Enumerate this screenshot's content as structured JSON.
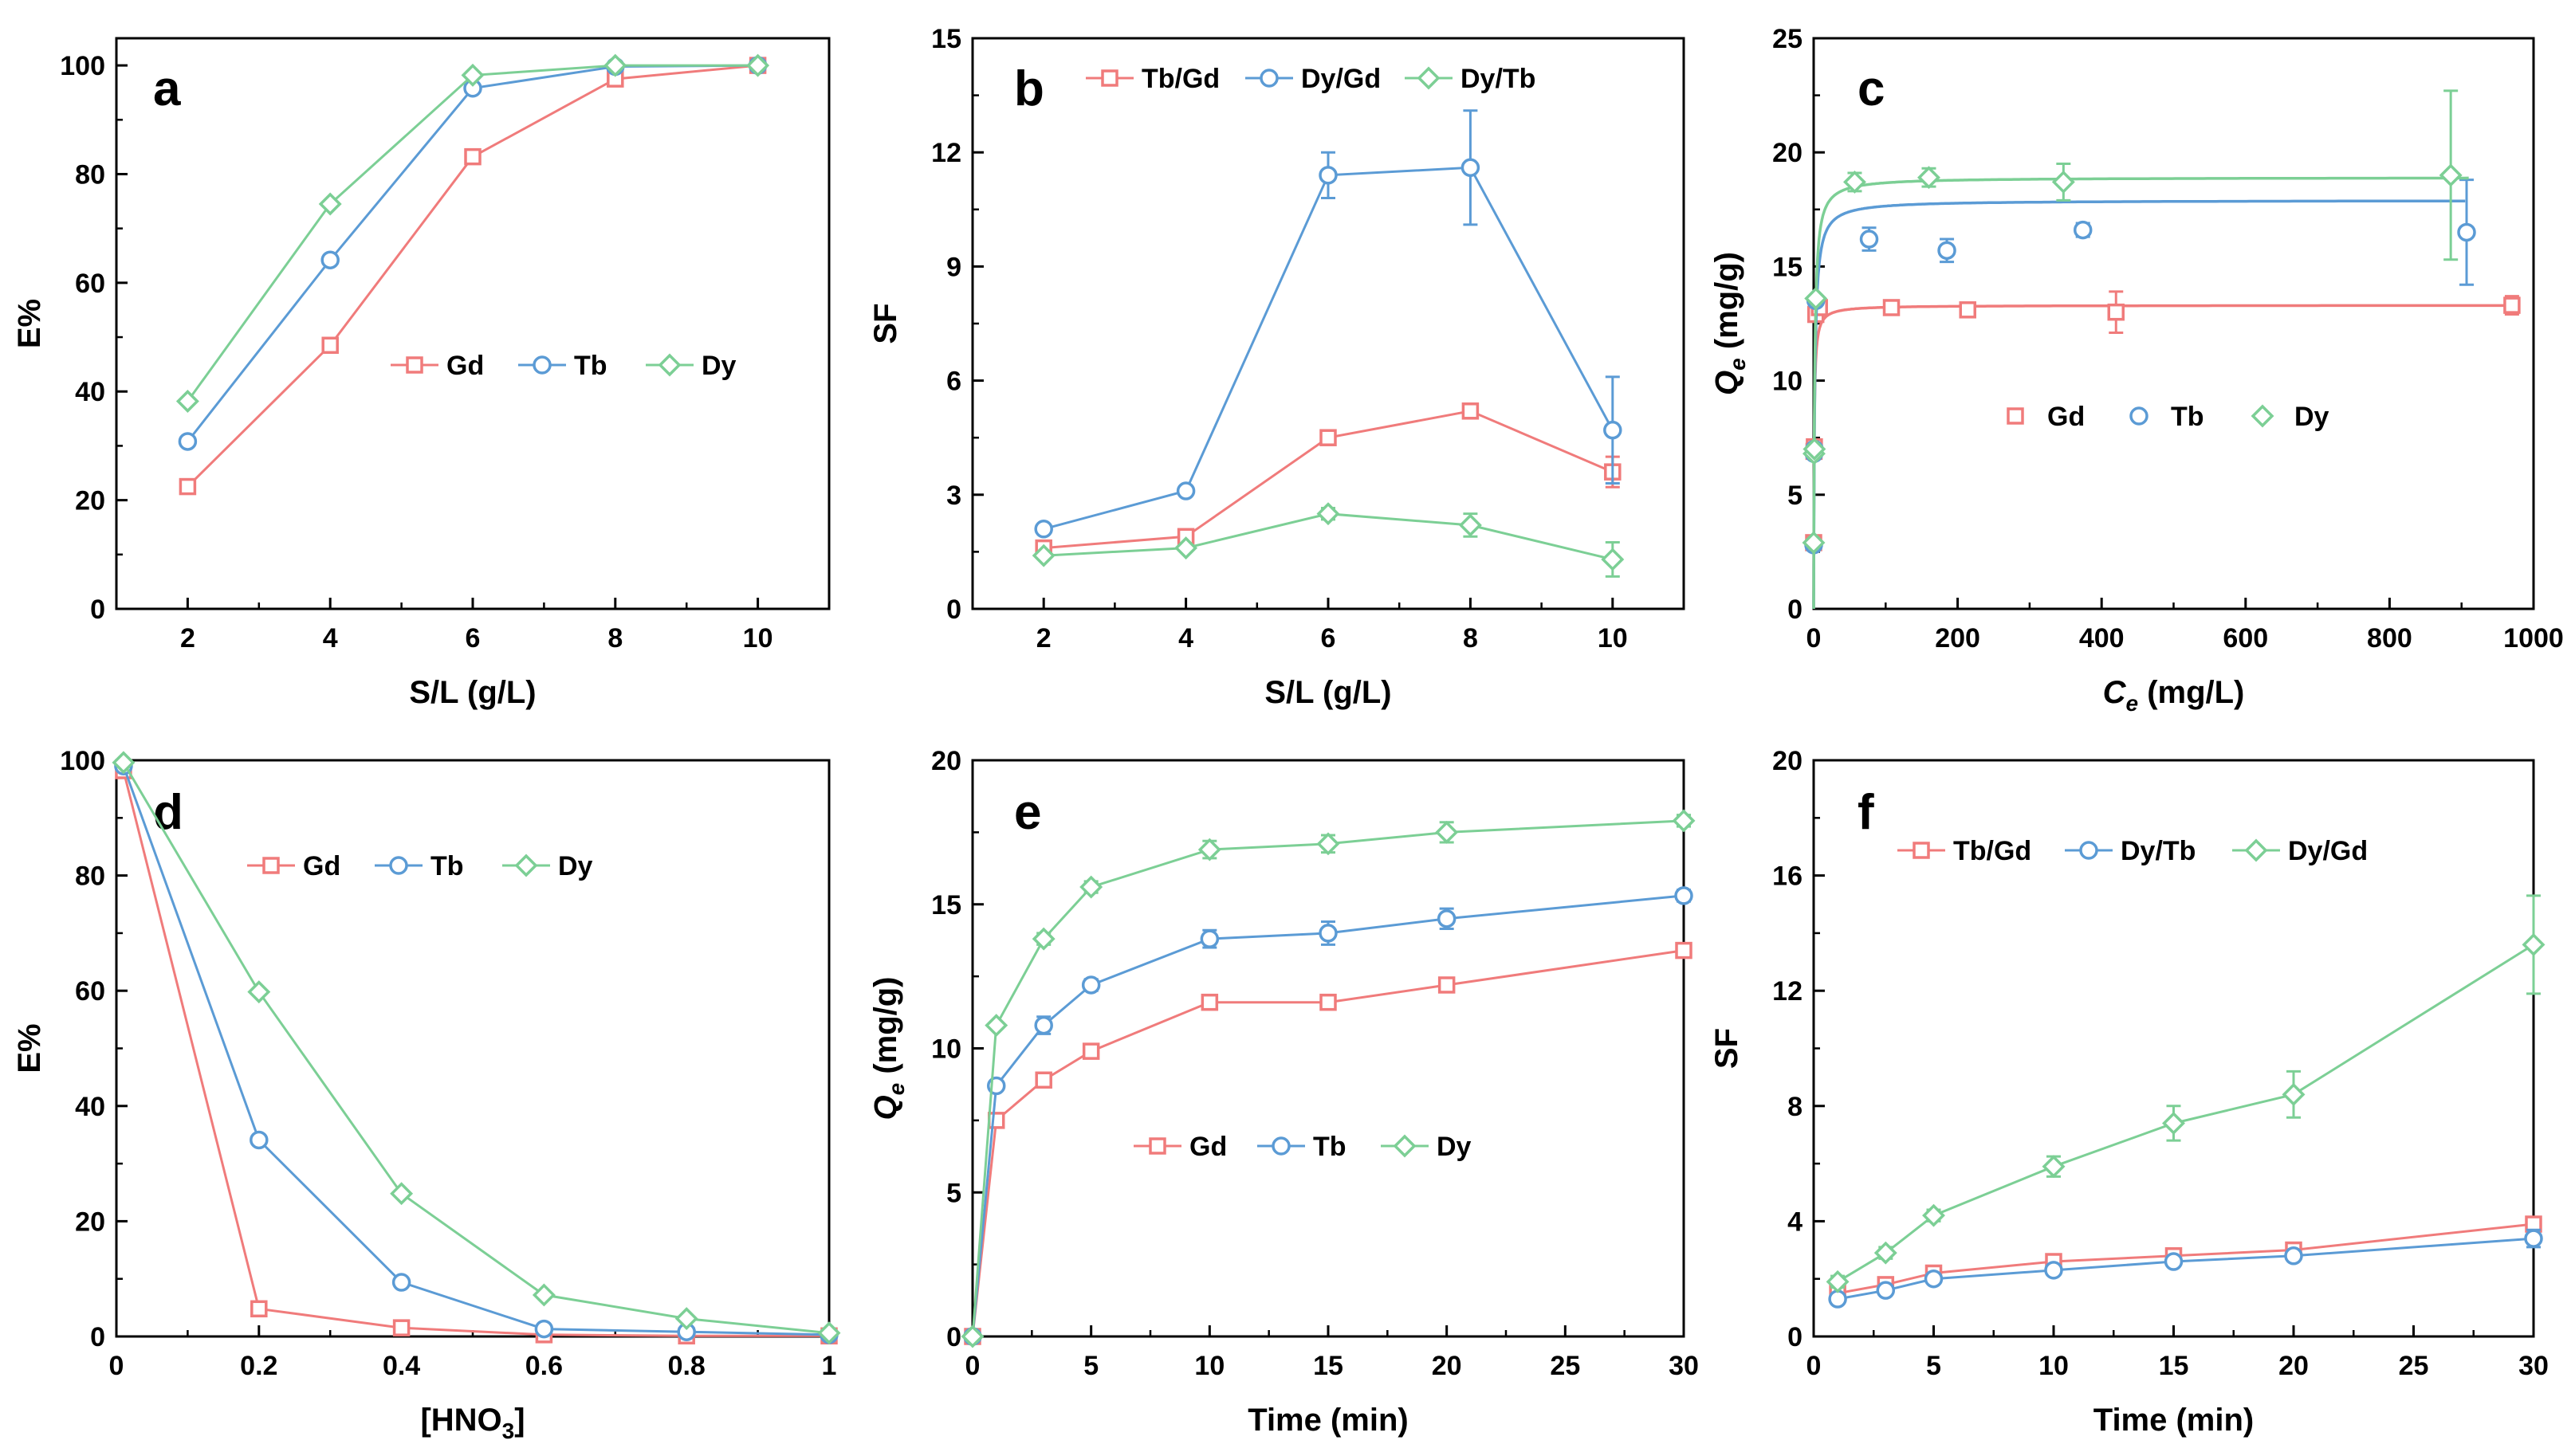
{
  "chart_data": [
    {
      "panel": "a",
      "type": "line",
      "ylabel": "E%",
      "xlabel": "S/L (g/L)",
      "xlim": [
        1,
        11
      ],
      "ylim": [
        0,
        105
      ],
      "xticks": [
        2,
        4,
        6,
        8,
        10
      ],
      "yticks": [
        0,
        20,
        40,
        60,
        80,
        100
      ],
      "legend_position": "center-right",
      "series": [
        {
          "name": "Gd",
          "marker": "square",
          "x": [
            2,
            4,
            6,
            8,
            10
          ],
          "y": [
            22.5,
            48.5,
            83.2,
            97.5,
            100
          ]
        },
        {
          "name": "Tb",
          "marker": "circle",
          "x": [
            2,
            4,
            6,
            8,
            10
          ],
          "y": [
            30.8,
            64.2,
            95.8,
            99.8,
            100
          ]
        },
        {
          "name": "Dy",
          "marker": "diamond",
          "x": [
            2,
            4,
            6,
            8,
            10
          ],
          "y": [
            38.2,
            74.5,
            98.2,
            100,
            100
          ]
        }
      ]
    },
    {
      "panel": "b",
      "type": "line",
      "ylabel": "SF",
      "xlabel": "S/L (g/L)",
      "xlim": [
        1,
        11
      ],
      "ylim": [
        0,
        15
      ],
      "xticks": [
        2,
        4,
        6,
        8,
        10
      ],
      "yticks": [
        0,
        3,
        6,
        9,
        12,
        15
      ],
      "legend_position": "top",
      "series": [
        {
          "name": "Tb/Gd",
          "marker": "square",
          "x": [
            2,
            4,
            6,
            8,
            10
          ],
          "y": [
            1.6,
            1.9,
            4.5,
            5.2,
            3.6
          ],
          "err": [
            0,
            0,
            0.12,
            0.15,
            0.4
          ]
        },
        {
          "name": "Dy/Gd",
          "marker": "circle",
          "x": [
            2,
            4,
            6,
            8,
            10
          ],
          "y": [
            2.1,
            3.1,
            11.4,
            11.6,
            4.7
          ],
          "err": [
            0,
            0,
            0.6,
            1.5,
            1.4
          ]
        },
        {
          "name": "Dy/Tb",
          "marker": "diamond",
          "x": [
            2,
            4,
            6,
            8,
            10
          ],
          "y": [
            1.4,
            1.6,
            2.5,
            2.2,
            1.3
          ],
          "err": [
            0,
            0,
            0.15,
            0.3,
            0.45
          ]
        }
      ]
    },
    {
      "panel": "c",
      "type": "scatter",
      "ylabel": "Qe (mg/g)",
      "xlabel": "Ce (mg/L)",
      "xlim": [
        0,
        1000
      ],
      "ylim": [
        0,
        25
      ],
      "xticks": [
        0,
        200,
        400,
        600,
        800,
        1000
      ],
      "yticks": [
        0,
        5,
        10,
        15,
        20,
        25
      ],
      "legend_position": "center",
      "series": [
        {
          "name": "Gd",
          "marker": "square",
          "x": [
            0,
            0.5,
            1,
            3,
            8,
            108,
            214,
            420,
            970
          ],
          "y": [
            2.9,
            6.9,
            7.1,
            12.9,
            13.2,
            13.2,
            13.1,
            13.0,
            13.3
          ],
          "err": [
            0,
            0,
            0,
            0,
            0.2,
            0.2,
            0.3,
            0.9,
            0.4
          ],
          "fit": {
            "qmax": 13.3,
            "k": 1.5
          }
        },
        {
          "name": "Tb",
          "marker": "circle",
          "x": [
            0,
            0.5,
            1,
            3,
            77,
            185,
            374,
            907
          ],
          "y": [
            2.8,
            6.8,
            7.0,
            13.5,
            16.2,
            15.7,
            16.6,
            16.5
          ],
          "err": [
            0,
            0,
            0,
            0,
            0.5,
            0.5,
            0.3,
            2.3
          ],
          "fit": {
            "qmax": 17.9,
            "k": 0.7,
            "xmax": 905
          }
        },
        {
          "name": "Dy",
          "marker": "diamond",
          "x": [
            0,
            0.5,
            1,
            3,
            57,
            160,
            347,
            885
          ],
          "y": [
            2.9,
            6.8,
            7.0,
            13.6,
            18.7,
            18.9,
            18.7,
            19.0
          ],
          "err": [
            0,
            0,
            0,
            0,
            0.4,
            0.4,
            0.8,
            3.7
          ],
          "fit": {
            "qmax": 18.9,
            "k": 0.8,
            "xmax": 910
          }
        }
      ]
    },
    {
      "panel": "d",
      "type": "line",
      "ylabel": "E%",
      "xlabel": "[HNO3]",
      "xlim": [
        0,
        1.0
      ],
      "ylim": [
        0,
        100
      ],
      "xticks": [
        0,
        0.2,
        0.4,
        0.6,
        0.8,
        1.0
      ],
      "yticks": [
        0,
        20,
        40,
        60,
        80,
        100
      ],
      "legend_position": "top",
      "series": [
        {
          "name": "Gd",
          "marker": "square",
          "x": [
            0.01,
            0.2,
            0.4,
            0.6,
            0.8,
            1.0
          ],
          "y": [
            98.2,
            4.8,
            1.5,
            0.3,
            0.1,
            0.1
          ]
        },
        {
          "name": "Tb",
          "marker": "circle",
          "x": [
            0.01,
            0.2,
            0.4,
            0.6,
            0.8,
            1.0
          ],
          "y": [
            99.0,
            34.1,
            9.4,
            1.3,
            0.8,
            0.3
          ]
        },
        {
          "name": "Dy",
          "marker": "diamond",
          "x": [
            0.01,
            0.2,
            0.4,
            0.6,
            0.8,
            1.0
          ],
          "y": [
            99.6,
            59.8,
            24.8,
            7.2,
            3.1,
            0.6
          ]
        }
      ]
    },
    {
      "panel": "e",
      "type": "line",
      "ylabel": "Qe (mg/g)",
      "xlabel": "Time (min)",
      "xlim": [
        0,
        30
      ],
      "ylim": [
        0,
        20
      ],
      "xticks": [
        0,
        5,
        10,
        15,
        20,
        25,
        30
      ],
      "yticks": [
        0,
        5,
        10,
        15,
        20
      ],
      "legend_position": "center-right",
      "series": [
        {
          "name": "Gd",
          "marker": "square",
          "x": [
            0,
            1,
            3,
            5,
            10,
            15,
            20,
            30
          ],
          "y": [
            0,
            7.5,
            8.9,
            9.9,
            11.6,
            11.6,
            12.2,
            13.4
          ],
          "err": [
            0,
            0,
            0.2,
            0.2,
            0.2,
            0.2,
            0.2,
            0.2
          ]
        },
        {
          "name": "Tb",
          "marker": "circle",
          "x": [
            0,
            1,
            3,
            5,
            10,
            15,
            20,
            30
          ],
          "y": [
            0,
            8.7,
            10.8,
            12.2,
            13.8,
            14.0,
            14.5,
            15.3
          ],
          "err": [
            0,
            0,
            0.3,
            0.2,
            0.3,
            0.4,
            0.35,
            0.2
          ]
        },
        {
          "name": "Dy",
          "marker": "diamond",
          "x": [
            0,
            1,
            3,
            5,
            10,
            15,
            20,
            30
          ],
          "y": [
            0,
            10.8,
            13.8,
            15.6,
            16.9,
            17.1,
            17.5,
            17.9
          ],
          "err": [
            0,
            0,
            0.2,
            0.2,
            0.3,
            0.3,
            0.35,
            0.2
          ]
        }
      ]
    },
    {
      "panel": "f",
      "type": "line",
      "ylabel": "SF",
      "xlabel": "Time (min)",
      "xlim": [
        0,
        30
      ],
      "ylim": [
        0,
        20
      ],
      "xticks": [
        0,
        5,
        10,
        15,
        20,
        25,
        30
      ],
      "yticks": [
        0,
        4,
        8,
        12,
        16,
        20
      ],
      "legend_position": "top",
      "series": [
        {
          "name": "Tb/Gd",
          "marker": "square",
          "x": [
            1,
            3,
            5,
            10,
            15,
            20,
            30
          ],
          "y": [
            1.5,
            1.8,
            2.2,
            2.6,
            2.8,
            3.0,
            3.9
          ],
          "err": [
            0,
            0,
            0,
            0,
            0,
            0,
            0
          ]
        },
        {
          "name": "Dy/Tb",
          "marker": "circle",
          "x": [
            1,
            3,
            5,
            10,
            15,
            20,
            30
          ],
          "y": [
            1.3,
            1.6,
            2.0,
            2.3,
            2.6,
            2.8,
            3.4
          ],
          "err": [
            0,
            0,
            0,
            0,
            0,
            0,
            0.3
          ]
        },
        {
          "name": "Dy/Gd",
          "marker": "diamond",
          "x": [
            1,
            3,
            5,
            10,
            15,
            20,
            30
          ],
          "y": [
            1.9,
            2.9,
            4.2,
            5.9,
            7.4,
            8.4,
            13.6
          ],
          "err": [
            0.2,
            0.2,
            0.2,
            0.35,
            0.6,
            0.8,
            1.7
          ]
        }
      ]
    }
  ],
  "colors": {
    "series_1": "#f07b7b",
    "series_2": "#5b9bd5",
    "series_3": "#7ccf95",
    "axis": "#000000"
  }
}
